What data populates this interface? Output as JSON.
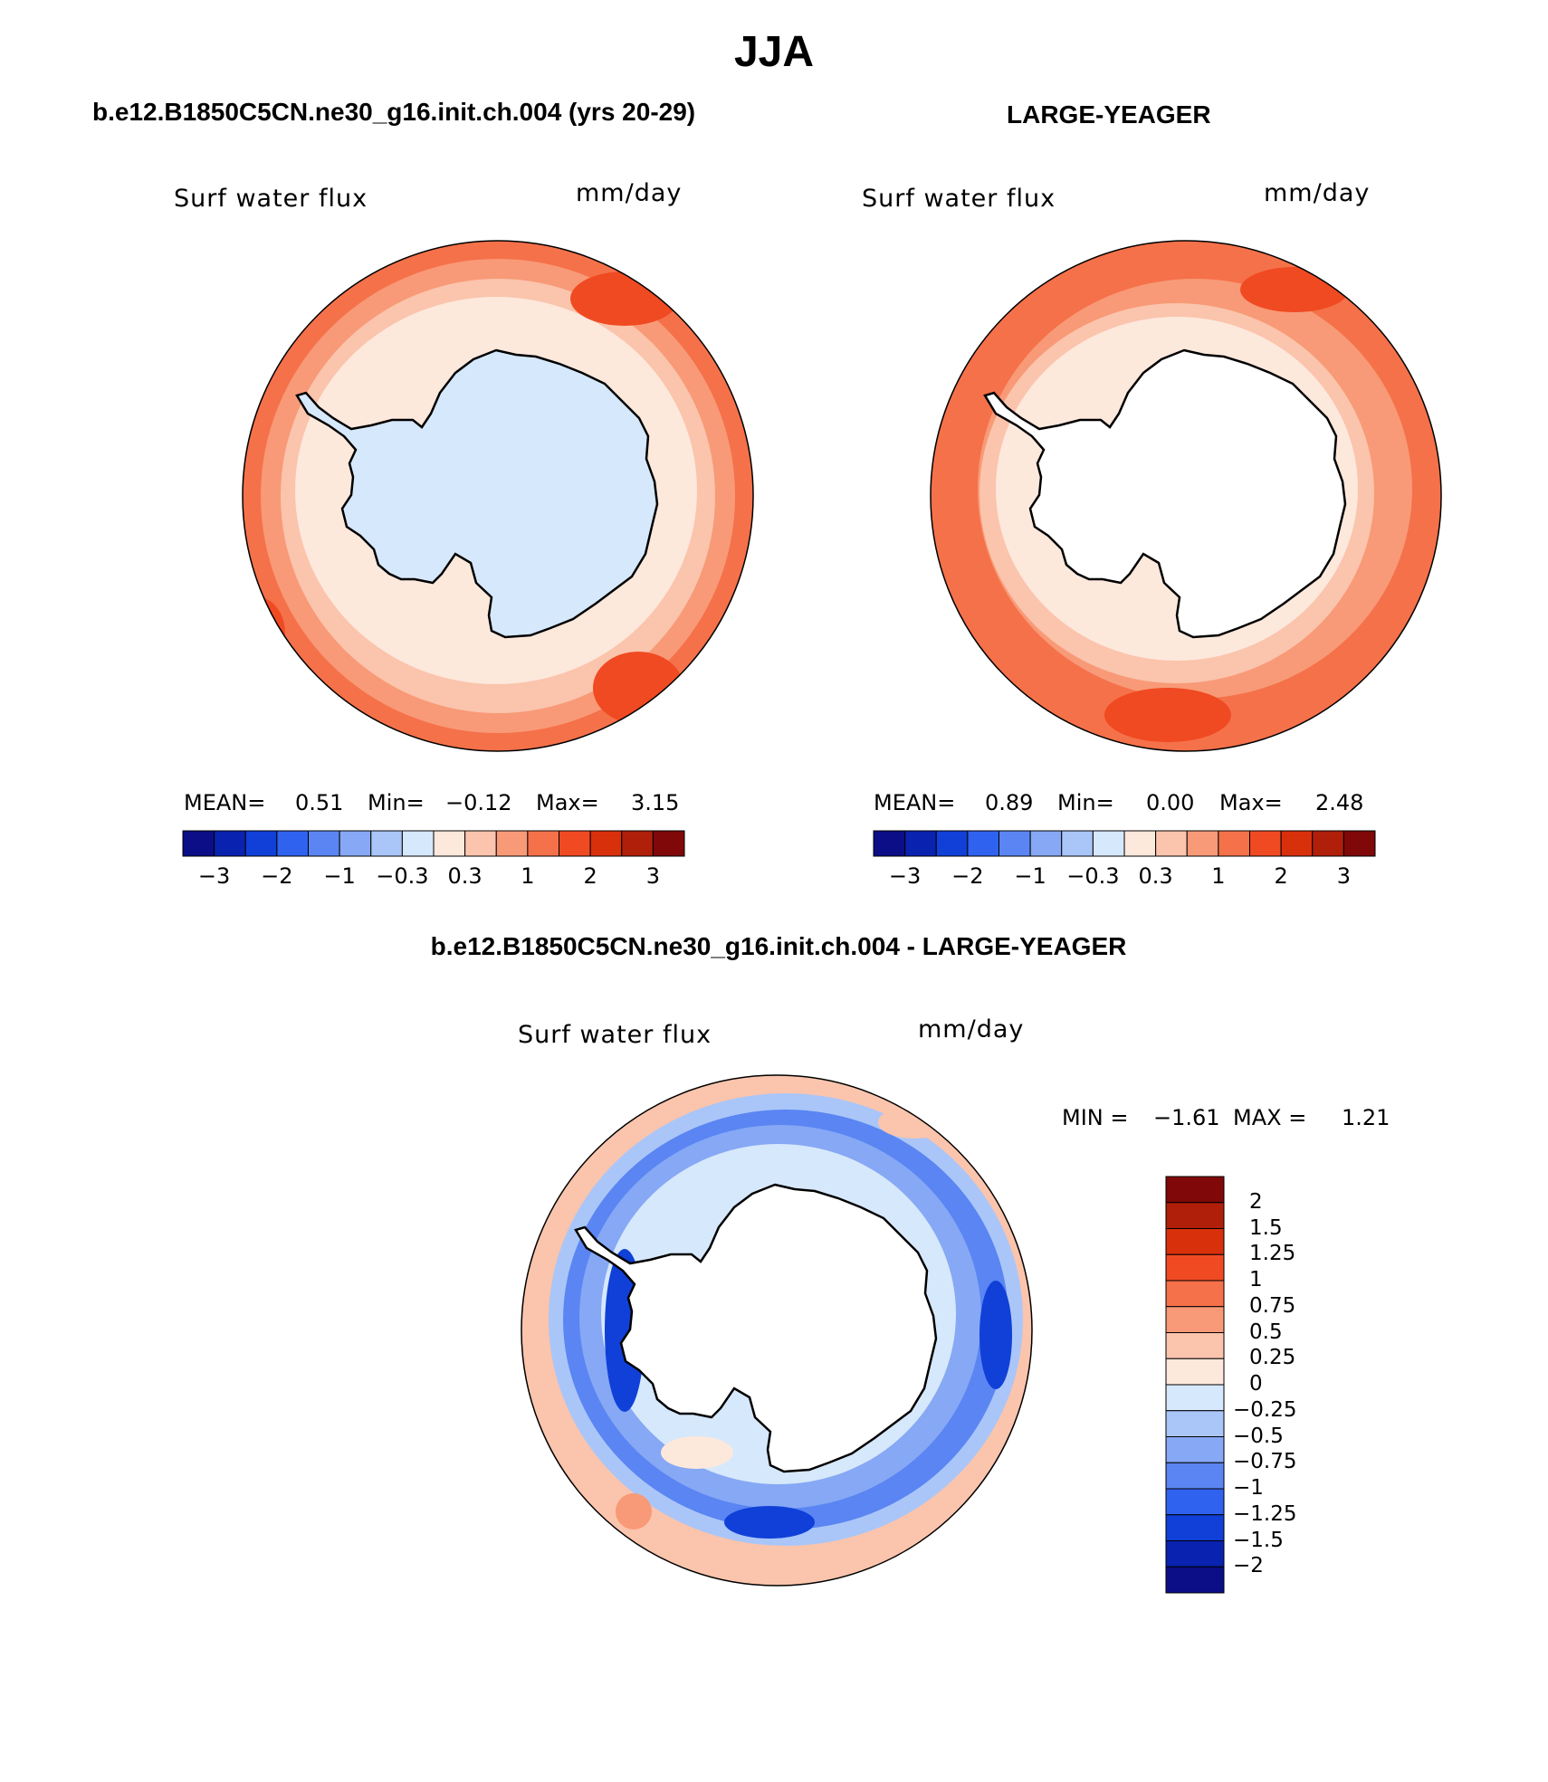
{
  "title": "JJA",
  "panels": {
    "left": {
      "case": "b.e12.B1850C5CN.ne30_g16.init.ch.004 (yrs 20-29)",
      "variable": "Surf  water  flux",
      "units": "mm/day",
      "stats": {
        "mean_label": "MEAN=",
        "mean": "0.51",
        "min_label": "Min=",
        "min": "−0.12",
        "max_label": "Max=",
        "max": "3.15"
      }
    },
    "right": {
      "case": "LARGE-YEAGER",
      "variable": "Surf  water  flux",
      "units": "mm/day",
      "stats": {
        "mean_label": "MEAN=",
        "mean": "0.89",
        "min_label": "Min=",
        "min": "0.00",
        "max_label": "Max=",
        "max": "2.48"
      }
    },
    "diff": {
      "case": "b.e12.B1850C5CN.ne30_g16.init.ch.004 - LARGE-YEAGER",
      "variable": "Surf  water  flux",
      "units": "mm/day",
      "stats": {
        "min_label": "MIN =",
        "min": "−1.61",
        "max_label": "MAX =",
        "max": "1.21"
      }
    }
  },
  "colorbar_horizontal": {
    "colors": [
      "#0b0e86",
      "#0a22b0",
      "#1040d8",
      "#2f62ee",
      "#5a85f2",
      "#86a8f5",
      "#aac6f8",
      "#d6e8fb",
      "#fde8dc",
      "#fbc4ac",
      "#f89a77",
      "#f5714a",
      "#f04a22",
      "#d9300c",
      "#b01f09",
      "#800808"
    ],
    "tick_labels": [
      "−3",
      "−2",
      "−1",
      "−0.3",
      "0.3",
      "1",
      "2",
      "3"
    ]
  },
  "colorbar_vertical": {
    "colors": [
      "#800808",
      "#b01f09",
      "#d9300c",
      "#f04a22",
      "#f5714a",
      "#f89a77",
      "#fbc4ac",
      "#fde8dc",
      "#d6e8fb",
      "#aac6f8",
      "#86a8f5",
      "#5a85f2",
      "#2f62ee",
      "#1040d8",
      "#0a22b0",
      "#0b0e86"
    ],
    "tick_labels": [
      "2",
      "1.5",
      "1.25",
      "1",
      "0.75",
      "0.5",
      "0.25",
      "0",
      "−0.25",
      "−0.5",
      "−0.75",
      "−1",
      "−1.25",
      "−1.5",
      "−2"
    ]
  },
  "colors": {
    "land_model": "#d6e8fb",
    "land_obs": "#ffffff",
    "ocean_pale_red": "#fde8dc",
    "ocean_light_red": "#fbc4ac",
    "ocean_mid_red": "#f89a77",
    "ocean_red": "#f5714a",
    "ocean_deep_red": "#f04a22",
    "diff_pale_blue": "#d6e8fb",
    "diff_light_blue": "#aac6f8",
    "diff_blue": "#5a85f2",
    "diff_deep_blue": "#1040d8"
  }
}
